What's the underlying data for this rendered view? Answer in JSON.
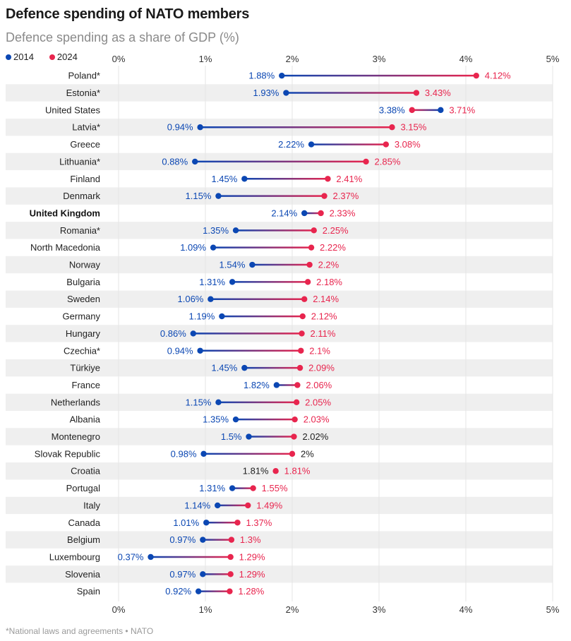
{
  "chart_data": {
    "type": "dumbbell",
    "title": "Defence spending of NATO members",
    "subtitle": "Defence spending as a share of GDP (%)",
    "xlabel": "",
    "ylabel": "",
    "xlim": [
      0,
      5
    ],
    "x_ticks": [
      "0%",
      "1%",
      "2%",
      "3%",
      "4%",
      "5%"
    ],
    "x_tick_values": [
      0,
      1,
      2,
      3,
      4,
      5
    ],
    "legend": [
      {
        "name": "2014",
        "color": "#0b47b3"
      },
      {
        "name": "2024",
        "color": "#e8254e"
      }
    ],
    "legend_position": "top-left",
    "grid": true,
    "colors": {
      "y2014": "#0b47b3",
      "y2024": "#e8254e",
      "neutral": "#222222",
      "band": "#efefef"
    },
    "highlight": "United Kingdom",
    "rows": [
      {
        "country": "Poland*",
        "y2014": 1.88,
        "y2024": 4.12,
        "label2014": "1.88%",
        "label2024": "4.12%"
      },
      {
        "country": "Estonia*",
        "y2014": 1.93,
        "y2024": 3.43,
        "label2014": "1.93%",
        "label2024": "3.43%"
      },
      {
        "country": "United States",
        "y2014": 3.71,
        "y2024": 3.38,
        "label2014": "3.71%",
        "label2024": "3.38%"
      },
      {
        "country": "Latvia*",
        "y2014": 0.94,
        "y2024": 3.15,
        "label2014": "0.94%",
        "label2024": "3.15%"
      },
      {
        "country": "Greece",
        "y2014": 2.22,
        "y2024": 3.08,
        "label2014": "2.22%",
        "label2024": "3.08%"
      },
      {
        "country": "Lithuania*",
        "y2014": 0.88,
        "y2024": 2.85,
        "label2014": "0.88%",
        "label2024": "2.85%"
      },
      {
        "country": "Finland",
        "y2014": 1.45,
        "y2024": 2.41,
        "label2014": "1.45%",
        "label2024": "2.41%"
      },
      {
        "country": "Denmark",
        "y2014": 1.15,
        "y2024": 2.37,
        "label2014": "1.15%",
        "label2024": "2.37%"
      },
      {
        "country": "United Kingdom",
        "y2014": 2.14,
        "y2024": 2.33,
        "label2014": "2.14%",
        "label2024": "2.33%"
      },
      {
        "country": "Romania*",
        "y2014": 1.35,
        "y2024": 2.25,
        "label2014": "1.35%",
        "label2024": "2.25%"
      },
      {
        "country": "North Macedonia",
        "y2014": 1.09,
        "y2024": 2.22,
        "label2014": "1.09%",
        "label2024": "2.22%"
      },
      {
        "country": "Norway",
        "y2014": 1.54,
        "y2024": 2.2,
        "label2014": "1.54%",
        "label2024": "2.2%"
      },
      {
        "country": "Bulgaria",
        "y2014": 1.31,
        "y2024": 2.18,
        "label2014": "1.31%",
        "label2024": "2.18%"
      },
      {
        "country": "Sweden",
        "y2014": 1.06,
        "y2024": 2.14,
        "label2014": "1.06%",
        "label2024": "2.14%"
      },
      {
        "country": "Germany",
        "y2014": 1.19,
        "y2024": 2.12,
        "label2014": "1.19%",
        "label2024": "2.12%"
      },
      {
        "country": "Hungary",
        "y2014": 0.86,
        "y2024": 2.11,
        "label2014": "0.86%",
        "label2024": "2.11%"
      },
      {
        "country": "Czechia*",
        "y2014": 0.94,
        "y2024": 2.1,
        "label2014": "0.94%",
        "label2024": "2.1%"
      },
      {
        "country": "Türkiye",
        "y2014": 1.45,
        "y2024": 2.09,
        "label2014": "1.45%",
        "label2024": "2.09%"
      },
      {
        "country": "France",
        "y2014": 1.82,
        "y2024": 2.06,
        "label2014": "1.82%",
        "label2024": "2.06%"
      },
      {
        "country": "Netherlands",
        "y2014": 1.15,
        "y2024": 2.05,
        "label2014": "1.15%",
        "label2024": "2.05%"
      },
      {
        "country": "Albania",
        "y2014": 1.35,
        "y2024": 2.03,
        "label2014": "1.35%",
        "label2024": "2.03%"
      },
      {
        "country": "Montenegro",
        "y2014": 1.5,
        "y2024": 2.02,
        "label2014": "1.5%",
        "label2024": "2.02%",
        "label2024_color": "neutral"
      },
      {
        "country": "Slovak Republic",
        "y2014": 0.98,
        "y2024": 2.0,
        "label2014": "0.98%",
        "label2024": "2%",
        "label2024_color": "neutral"
      },
      {
        "country": "Croatia",
        "y2014": 1.81,
        "y2024": 1.81,
        "label2014": "1.81%",
        "label2024": "1.81%",
        "label2014_color": "neutral"
      },
      {
        "country": "Portugal",
        "y2014": 1.31,
        "y2024": 1.55,
        "label2014": "1.31%",
        "label2024": "1.55%"
      },
      {
        "country": "Italy",
        "y2014": 1.14,
        "y2024": 1.49,
        "label2014": "1.14%",
        "label2024": "1.49%"
      },
      {
        "country": "Canada",
        "y2014": 1.01,
        "y2024": 1.37,
        "label2014": "1.01%",
        "label2024": "1.37%"
      },
      {
        "country": "Belgium",
        "y2014": 0.97,
        "y2024": 1.3,
        "label2014": "0.97%",
        "label2024": "1.3%"
      },
      {
        "country": "Luxembourg",
        "y2014": 0.37,
        "y2024": 1.29,
        "label2014": "0.37%",
        "label2024": "1.29%"
      },
      {
        "country": "Slovenia",
        "y2014": 0.97,
        "y2024": 1.29,
        "label2014": "0.97%",
        "label2024": "1.29%"
      },
      {
        "country": "Spain",
        "y2014": 0.92,
        "y2024": 1.28,
        "label2014": "0.92%",
        "label2024": "1.28%"
      }
    ],
    "footnote": "*National laws and agreements • NATO"
  }
}
